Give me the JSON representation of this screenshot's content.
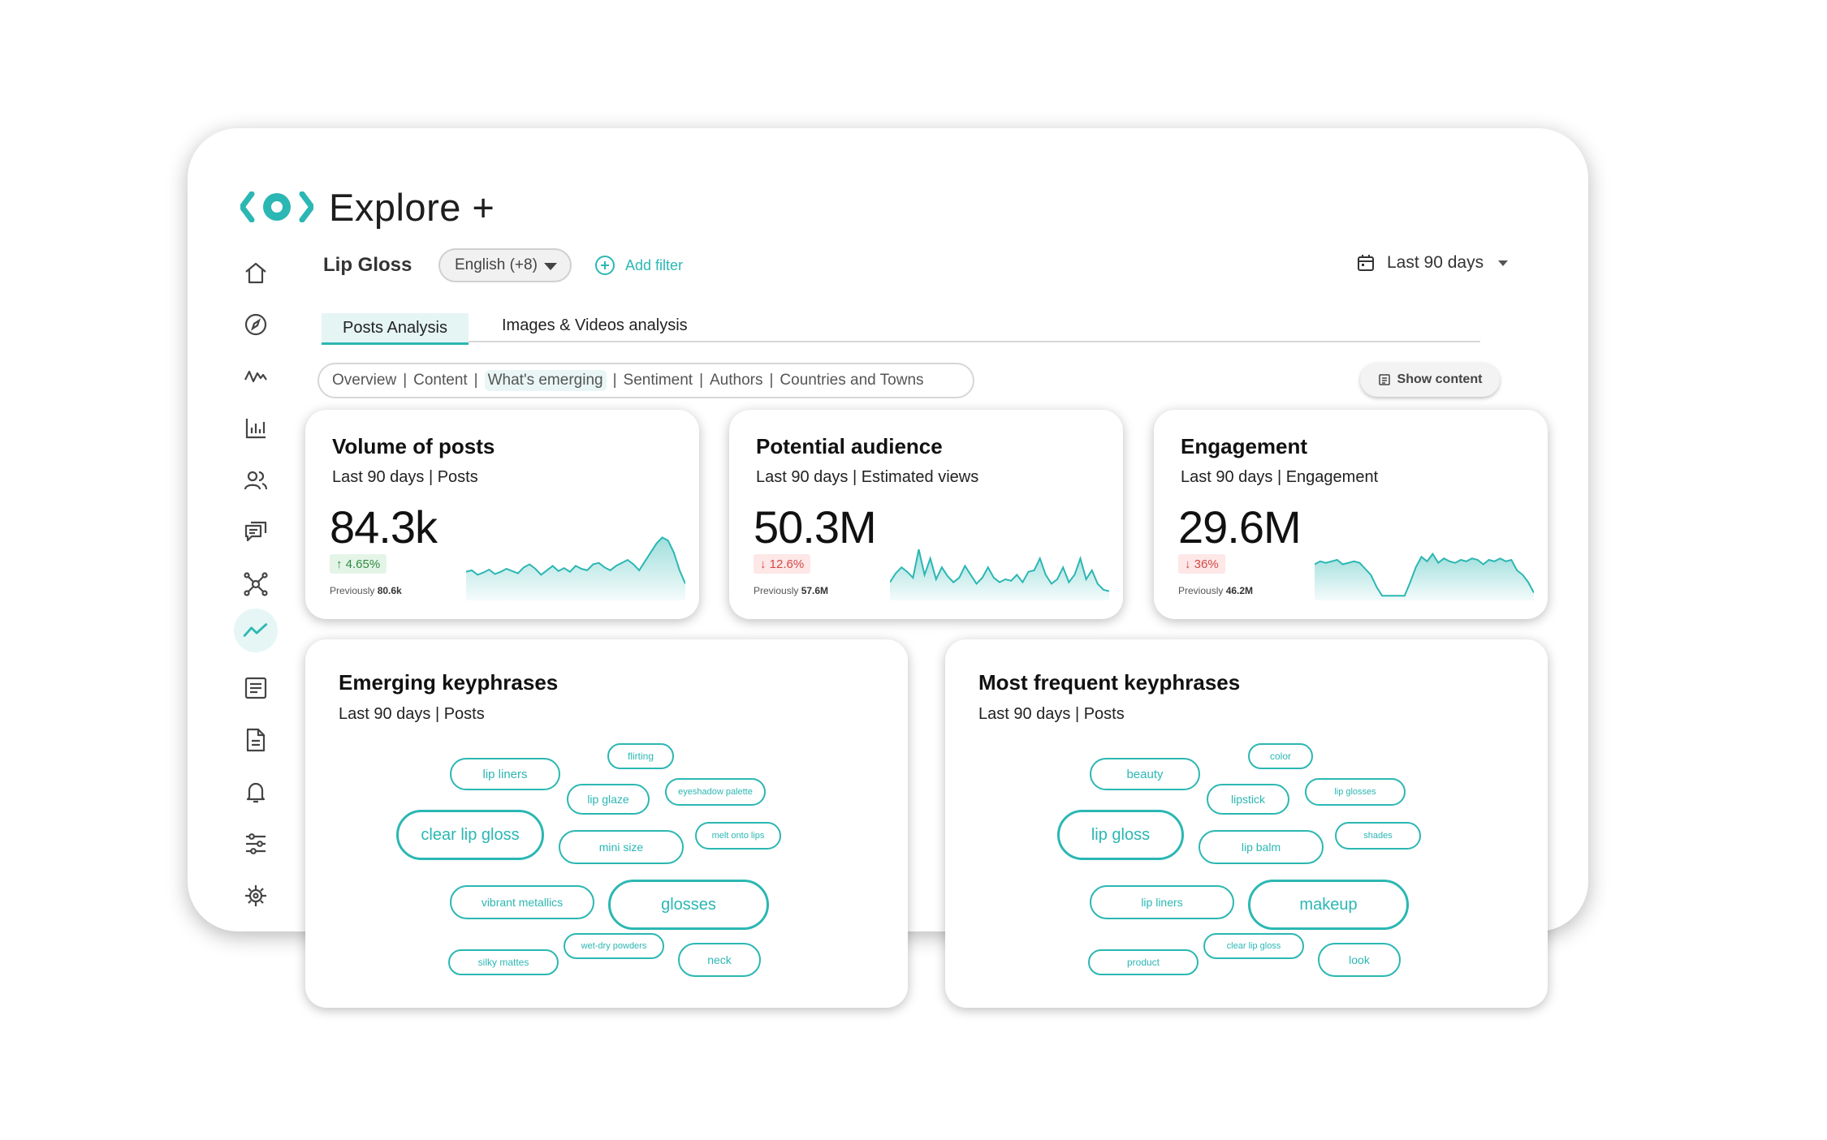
{
  "app": {
    "title": "Explore +",
    "brand_color": "#2bb7b3"
  },
  "sidebar": {
    "items": [
      {
        "icon": "home-icon"
      },
      {
        "icon": "compass-icon"
      },
      {
        "icon": "trend-wave-icon"
      },
      {
        "icon": "bar-chart-icon"
      },
      {
        "icon": "users-icon"
      },
      {
        "icon": "conversation-icon"
      },
      {
        "icon": "network-icon"
      },
      {
        "icon": "trending-line-icon",
        "active": true
      },
      {
        "icon": "report-list-icon"
      },
      {
        "icon": "document-icon"
      },
      {
        "icon": "bell-icon"
      },
      {
        "icon": "sliders-icon"
      },
      {
        "icon": "settings-icon"
      }
    ]
  },
  "header": {
    "topic": "Lip Gloss",
    "language": "English (+8)",
    "add_filter": "Add filter",
    "date_range": "Last 90 days"
  },
  "tabs": [
    {
      "label": "Posts Analysis",
      "active": true
    },
    {
      "label": "Images & Videos analysis"
    }
  ],
  "subnav": {
    "items": [
      "Overview",
      "Content",
      "What's emerging",
      "Sentiment",
      "Authors",
      "Countries and Towns"
    ],
    "active_index": 2,
    "separator": "|"
  },
  "show_content": "Show content",
  "metrics": [
    {
      "title": "Volume of posts",
      "subtitle": "Last 90 days  |  Posts",
      "value": "84.3k",
      "change": "4.65%",
      "direction": "up",
      "previous_label": "Previously",
      "previous_value": "80.6k",
      "sparkline": [
        34,
        36,
        30,
        33,
        37,
        31,
        34,
        38,
        35,
        32,
        40,
        44,
        38,
        30,
        36,
        42,
        35,
        39,
        34,
        42,
        38,
        36,
        44,
        46,
        40,
        36,
        42,
        46,
        50,
        44,
        36,
        48,
        60,
        72,
        80,
        76,
        60,
        36,
        18
      ]
    },
    {
      "title": "Potential audience",
      "subtitle": "Last 90 days  |  Estimated views",
      "value": "50.3M",
      "change": "12.6%",
      "direction": "down",
      "previous_label": "Previously",
      "previous_value": "57.6M",
      "sparkline": [
        20,
        32,
        40,
        34,
        26,
        64,
        30,
        52,
        24,
        40,
        28,
        20,
        26,
        42,
        30,
        18,
        26,
        40,
        26,
        20,
        24,
        22,
        30,
        20,
        34,
        36,
        52,
        30,
        18,
        24,
        40,
        20,
        30,
        52,
        24,
        36,
        18,
        10,
        8
      ]
    },
    {
      "title": "Engagement",
      "subtitle": "Last 90 days  |  Engagement",
      "value": "29.6M",
      "change": "36%",
      "direction": "down",
      "previous_label": "Previously",
      "previous_value": "46.2M",
      "sparkline": [
        44,
        48,
        46,
        48,
        50,
        44,
        46,
        48,
        46,
        38,
        30,
        14,
        2,
        2,
        2,
        2,
        2,
        20,
        40,
        54,
        48,
        58,
        46,
        52,
        48,
        46,
        50,
        48,
        52,
        50,
        44,
        50,
        48,
        52,
        48,
        50,
        36,
        30,
        20,
        6
      ]
    }
  ],
  "keyphrases": [
    {
      "title": "Emerging keyphrases",
      "subtitle": "Last 90 days  |  Posts",
      "items": [
        "flirting",
        "lip liners",
        "lip glaze",
        "eyeshadow palette",
        "clear lip gloss",
        "mini size",
        "melt onto lips",
        "vibrant metallics",
        "glosses",
        "wet-dry powders",
        "silky mattes",
        "neck"
      ]
    },
    {
      "title": "Most frequent keyphrases",
      "subtitle": "Last 90 days  |  Posts",
      "items": [
        "color",
        "beauty",
        "lipstick",
        "lip glosses",
        "lip gloss",
        "lip balm",
        "shades",
        "lip liners",
        "makeup",
        "clear lip gloss",
        "product",
        "look"
      ]
    }
  ]
}
